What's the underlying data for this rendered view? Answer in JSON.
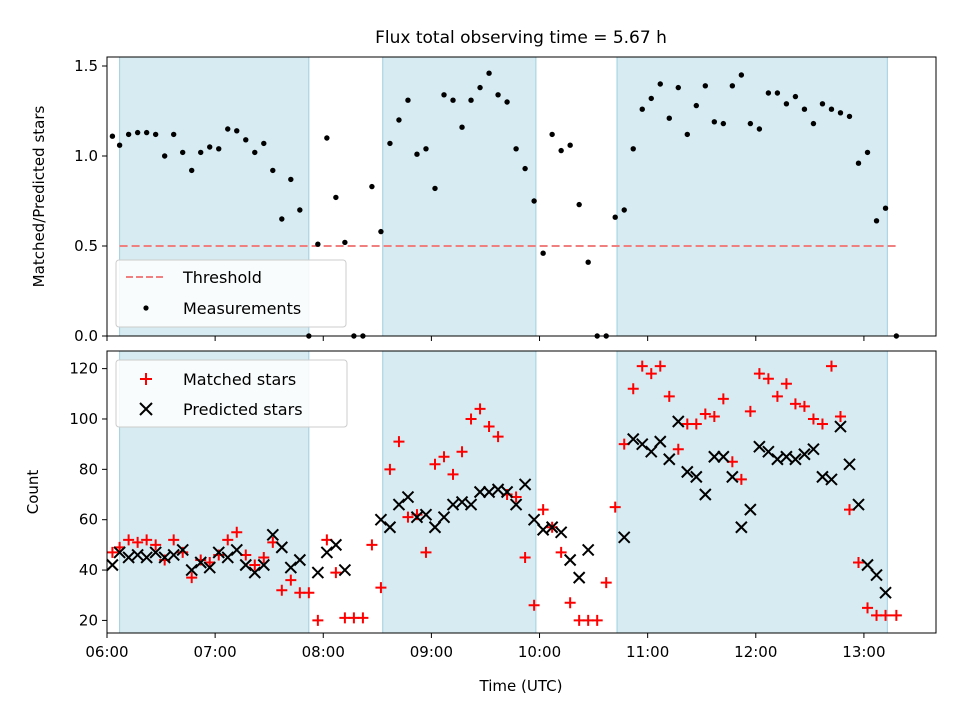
{
  "chart_data": [
    {
      "type": "scatter",
      "title": "Flux total observing time = 5.67 h",
      "ylabel": "Matched/Predicted stars",
      "xlabel": "",
      "xlim": [
        "06:00",
        "13:40"
      ],
      "ylim": [
        0,
        1.55
      ],
      "yticks": [
        "0.0",
        "0.5",
        "1.0",
        "1.5"
      ],
      "grid": false,
      "legend": "lower-left",
      "observing_windows": [
        [
          "06:07",
          "07:52"
        ],
        [
          "08:33",
          "09:58"
        ],
        [
          "10:43",
          "13:13"
        ]
      ],
      "threshold": {
        "name": "Threshold",
        "value": 0.5,
        "x_range": [
          "06:07",
          "13:18"
        ],
        "color": "#f08080"
      },
      "series": [
        {
          "name": "Measurements",
          "color": "#000000",
          "x": [
            "06:03",
            "06:07",
            "06:12",
            "06:17",
            "06:22",
            "06:27",
            "06:32",
            "06:37",
            "06:42",
            "06:47",
            "06:52",
            "06:57",
            "07:02",
            "07:07",
            "07:12",
            "07:17",
            "07:22",
            "07:27",
            "07:32",
            "07:37",
            "07:42",
            "07:47",
            "07:52",
            "07:57",
            "08:02",
            "08:07",
            "08:12",
            "08:17",
            "08:22",
            "08:27",
            "08:32",
            "08:37",
            "08:42",
            "08:47",
            "08:52",
            "08:57",
            "09:02",
            "09:07",
            "09:12",
            "09:17",
            "09:22",
            "09:27",
            "09:32",
            "09:37",
            "09:42",
            "09:47",
            "09:52",
            "09:57",
            "10:02",
            "10:07",
            "10:12",
            "10:17",
            "10:22",
            "10:27",
            "10:32",
            "10:37",
            "10:42",
            "10:47",
            "10:52",
            "10:57",
            "11:02",
            "11:07",
            "11:12",
            "11:17",
            "11:22",
            "11:27",
            "11:32",
            "11:37",
            "11:42",
            "11:47",
            "11:52",
            "11:57",
            "12:02",
            "12:07",
            "12:12",
            "12:17",
            "12:22",
            "12:27",
            "12:32",
            "12:37",
            "12:42",
            "12:47",
            "12:52",
            "12:57",
            "13:02",
            "13:07",
            "13:12",
            "13:18"
          ],
          "y": [
            1.11,
            1.06,
            1.12,
            1.13,
            1.13,
            1.12,
            1.0,
            1.12,
            1.02,
            0.92,
            1.02,
            1.05,
            1.04,
            1.15,
            1.14,
            1.09,
            1.02,
            1.07,
            0.92,
            0.65,
            0.87,
            0.7,
            0.0,
            0.51,
            1.1,
            0.77,
            0.52,
            0.0,
            0.0,
            0.83,
            0.58,
            1.07,
            1.2,
            1.31,
            1.01,
            1.04,
            0.82,
            1.34,
            1.31,
            1.16,
            1.31,
            1.38,
            1.46,
            1.34,
            1.3,
            1.04,
            0.93,
            0.75,
            0.46,
            1.12,
            1.03,
            1.06,
            0.73,
            0.41,
            0.0,
            0.0,
            0.66,
            0.7,
            1.04,
            1.26,
            1.32,
            1.4,
            1.21,
            1.38,
            1.12,
            1.28,
            1.39,
            1.19,
            1.18,
            1.39,
            1.45,
            1.18,
            1.15,
            1.35,
            1.35,
            1.29,
            1.33,
            1.26,
            1.18,
            1.29,
            1.26,
            1.24,
            1.22,
            0.96,
            1.02,
            0.64,
            0.71,
            0.0
          ]
        }
      ]
    },
    {
      "type": "scatter",
      "title": "",
      "ylabel": "Count",
      "xlabel": "Time (UTC)",
      "xlim": [
        "06:00",
        "13:40"
      ],
      "xticks": [
        "06:00",
        "07:00",
        "08:00",
        "09:00",
        "10:00",
        "11:00",
        "12:00",
        "13:00"
      ],
      "ylim": [
        15,
        127
      ],
      "yticks": [
        "20",
        "40",
        "60",
        "80",
        "100",
        "120"
      ],
      "grid": false,
      "legend": "top-left",
      "observing_windows": [
        [
          "06:07",
          "07:52"
        ],
        [
          "08:33",
          "09:58"
        ],
        [
          "10:43",
          "13:13"
        ]
      ],
      "series": [
        {
          "name": "Matched stars",
          "marker": "plus",
          "color": "#ff0000",
          "x": [
            "06:03",
            "06:07",
            "06:12",
            "06:17",
            "06:22",
            "06:27",
            "06:32",
            "06:37",
            "06:42",
            "06:47",
            "06:52",
            "06:57",
            "07:02",
            "07:07",
            "07:12",
            "07:17",
            "07:22",
            "07:27",
            "07:32",
            "07:37",
            "07:42",
            "07:47",
            "07:52",
            "07:57",
            "08:02",
            "08:07",
            "08:12",
            "08:17",
            "08:22",
            "08:27",
            "08:32",
            "08:37",
            "08:42",
            "08:47",
            "08:52",
            "08:57",
            "09:02",
            "09:07",
            "09:12",
            "09:17",
            "09:22",
            "09:27",
            "09:32",
            "09:37",
            "09:42",
            "09:47",
            "09:52",
            "09:57",
            "10:02",
            "10:07",
            "10:12",
            "10:17",
            "10:22",
            "10:27",
            "10:32",
            "10:37",
            "10:42",
            "10:47",
            "10:52",
            "10:57",
            "11:02",
            "11:07",
            "11:12",
            "11:17",
            "11:22",
            "11:27",
            "11:32",
            "11:37",
            "11:42",
            "11:47",
            "11:52",
            "11:57",
            "12:02",
            "12:07",
            "12:12",
            "12:17",
            "12:22",
            "12:27",
            "12:32",
            "12:37",
            "12:42",
            "12:47",
            "12:52",
            "12:57",
            "13:02",
            "13:07",
            "13:12",
            "13:18"
          ],
          "y": [
            47,
            49,
            52,
            51,
            52,
            50,
            44,
            52,
            47,
            37,
            44,
            43,
            46,
            52,
            55,
            46,
            42,
            45,
            51,
            32,
            36,
            31,
            31,
            20,
            52,
            39,
            21,
            21,
            21,
            50,
            33,
            80,
            91,
            61,
            62,
            47,
            82,
            85,
            78,
            87,
            100,
            104,
            97,
            93,
            70,
            69,
            45,
            26,
            64,
            57,
            47,
            27,
            20,
            20,
            20,
            35,
            65,
            90,
            112,
            121,
            118,
            121,
            109,
            88,
            98,
            98,
            102,
            101,
            108,
            83,
            76,
            103,
            118,
            116,
            109,
            114,
            106,
            105,
            100,
            98,
            121,
            101,
            64,
            43,
            25,
            22,
            22,
            22
          ]
        },
        {
          "name": "Predicted stars",
          "marker": "x",
          "color": "#000000",
          "x": [
            "06:03",
            "06:07",
            "06:12",
            "06:17",
            "06:22",
            "06:27",
            "06:32",
            "06:37",
            "06:42",
            "06:47",
            "06:52",
            "06:57",
            "07:02",
            "07:07",
            "07:12",
            "07:17",
            "07:22",
            "07:27",
            "07:32",
            "07:37",
            "07:42",
            "07:47",
            "07:57",
            "08:02",
            "08:07",
            "08:12",
            "08:32",
            "08:37",
            "08:42",
            "08:47",
            "08:52",
            "08:57",
            "09:02",
            "09:07",
            "09:12",
            "09:17",
            "09:22",
            "09:27",
            "09:32",
            "09:37",
            "09:42",
            "09:47",
            "09:52",
            "09:57",
            "10:02",
            "10:07",
            "10:12",
            "10:17",
            "10:22",
            "10:27",
            "10:47",
            "10:52",
            "10:57",
            "11:02",
            "11:07",
            "11:12",
            "11:17",
            "11:22",
            "11:27",
            "11:32",
            "11:37",
            "11:42",
            "11:47",
            "11:52",
            "11:57",
            "12:02",
            "12:07",
            "12:12",
            "12:17",
            "12:22",
            "12:27",
            "12:32",
            "12:37",
            "12:42",
            "12:47",
            "12:52",
            "12:57",
            "13:02",
            "13:07",
            "13:12"
          ],
          "y": [
            42,
            47,
            45,
            46,
            45,
            47,
            45,
            46,
            48,
            40,
            43,
            41,
            47,
            45,
            48,
            42,
            39,
            42,
            54,
            49,
            41,
            44,
            39,
            47,
            50,
            40,
            60,
            57,
            66,
            69,
            61,
            62,
            57,
            61,
            66,
            67,
            66,
            71,
            71,
            72,
            71,
            66,
            74,
            60,
            56,
            57,
            55,
            44,
            37,
            48,
            53,
            92,
            90,
            87,
            91,
            84,
            99,
            79,
            77,
            70,
            85,
            85,
            77,
            57,
            64,
            89,
            87,
            84,
            85,
            84,
            86,
            88,
            77,
            76,
            97,
            82,
            66,
            42,
            38,
            31
          ]
        }
      ]
    }
  ]
}
